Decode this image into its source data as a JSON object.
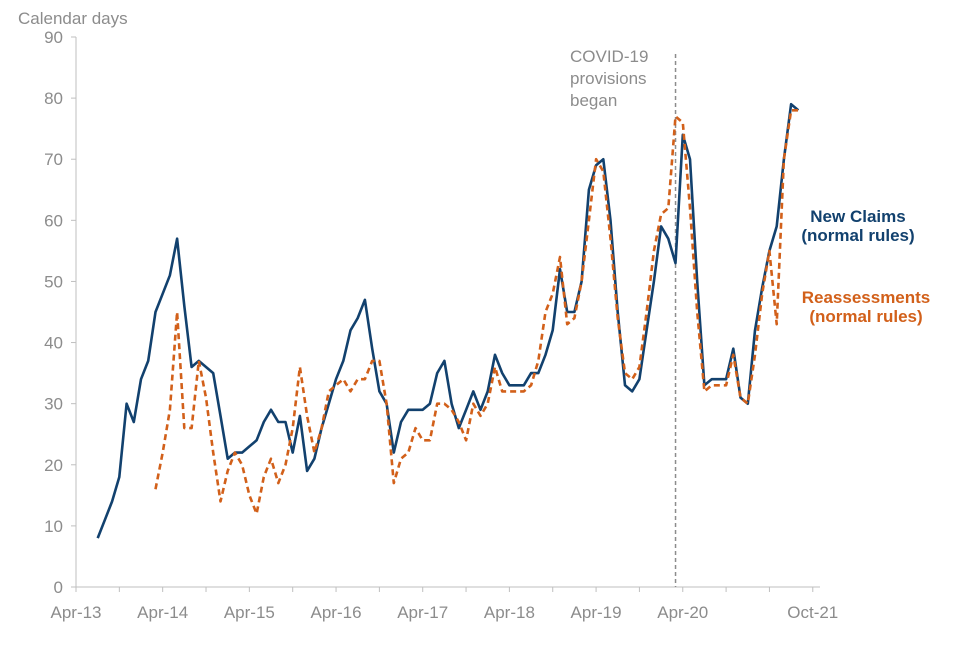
{
  "chart_data": {
    "type": "line",
    "ylabel": "Calendar days",
    "ylim": [
      0,
      90
    ],
    "yticks": [
      0,
      10,
      20,
      30,
      40,
      50,
      60,
      70,
      80,
      90
    ],
    "xlim": [
      "2013-04",
      "2021-11"
    ],
    "xtick_labels": [
      {
        "label": "Apr-13",
        "date": "2013-04"
      },
      {
        "label": "Apr-14",
        "date": "2014-04"
      },
      {
        "label": "Apr-15",
        "date": "2015-04"
      },
      {
        "label": "Apr-16",
        "date": "2016-04"
      },
      {
        "label": "Apr-17",
        "date": "2017-04"
      },
      {
        "label": "Apr-18",
        "date": "2018-04"
      },
      {
        "label": "Apr-19",
        "date": "2019-04"
      },
      {
        "label": "Apr-20",
        "date": "2020-04"
      },
      {
        "label": "Oct-21",
        "date": "2021-10"
      }
    ],
    "grid": false,
    "annotation": {
      "text": [
        "COVID-19",
        "provisions",
        "began"
      ],
      "date": "2020-03"
    },
    "series": [
      {
        "name": "New Claims (normal rules)",
        "label_lines": [
          "New Claims",
          "(normal rules)"
        ],
        "color": "#12416e",
        "style": "solid",
        "points": [
          [
            "2013-07",
            8
          ],
          [
            "2013-08",
            11
          ],
          [
            "2013-09",
            14
          ],
          [
            "2013-10",
            18
          ],
          [
            "2013-11",
            30
          ],
          [
            "2013-12",
            27
          ],
          [
            "2014-01",
            34
          ],
          [
            "2014-02",
            37
          ],
          [
            "2014-03",
            45
          ],
          [
            "2014-04",
            48
          ],
          [
            "2014-05",
            51
          ],
          [
            "2014-06",
            57
          ],
          [
            "2014-07",
            46
          ],
          [
            "2014-08",
            36
          ],
          [
            "2014-09",
            37
          ],
          [
            "2014-10",
            36
          ],
          [
            "2014-11",
            35
          ],
          [
            "2014-12",
            28
          ],
          [
            "2015-01",
            21
          ],
          [
            "2015-02",
            22
          ],
          [
            "2015-03",
            22
          ],
          [
            "2015-04",
            23
          ],
          [
            "2015-05",
            24
          ],
          [
            "2015-06",
            27
          ],
          [
            "2015-07",
            29
          ],
          [
            "2015-08",
            27
          ],
          [
            "2015-09",
            27
          ],
          [
            "2015-10",
            22
          ],
          [
            "2015-11",
            28
          ],
          [
            "2015-12",
            19
          ],
          [
            "2016-01",
            21
          ],
          [
            "2016-02",
            26
          ],
          [
            "2016-03",
            30
          ],
          [
            "2016-04",
            34
          ],
          [
            "2016-05",
            37
          ],
          [
            "2016-06",
            42
          ],
          [
            "2016-07",
            44
          ],
          [
            "2016-08",
            47
          ],
          [
            "2016-09",
            39
          ],
          [
            "2016-10",
            32
          ],
          [
            "2016-11",
            30
          ],
          [
            "2016-12",
            22
          ],
          [
            "2017-01",
            27
          ],
          [
            "2017-02",
            29
          ],
          [
            "2017-03",
            29
          ],
          [
            "2017-04",
            29
          ],
          [
            "2017-05",
            30
          ],
          [
            "2017-06",
            35
          ],
          [
            "2017-07",
            37
          ],
          [
            "2017-08",
            30
          ],
          [
            "2017-09",
            26
          ],
          [
            "2017-10",
            29
          ],
          [
            "2017-11",
            32
          ],
          [
            "2017-12",
            29
          ],
          [
            "2018-01",
            32
          ],
          [
            "2018-02",
            38
          ],
          [
            "2018-03",
            35
          ],
          [
            "2018-04",
            33
          ],
          [
            "2018-05",
            33
          ],
          [
            "2018-06",
            33
          ],
          [
            "2018-07",
            35
          ],
          [
            "2018-08",
            35
          ],
          [
            "2018-09",
            38
          ],
          [
            "2018-10",
            42
          ],
          [
            "2018-11",
            52
          ],
          [
            "2018-12",
            45
          ],
          [
            "2019-01",
            45
          ],
          [
            "2019-02",
            50
          ],
          [
            "2019-03",
            65
          ],
          [
            "2019-04",
            69
          ],
          [
            "2019-05",
            70
          ],
          [
            "2019-06",
            60
          ],
          [
            "2019-07",
            45
          ],
          [
            "2019-08",
            33
          ],
          [
            "2019-09",
            32
          ],
          [
            "2019-10",
            34
          ],
          [
            "2019-11",
            42
          ],
          [
            "2019-12",
            50
          ],
          [
            "2020-01",
            59
          ],
          [
            "2020-02",
            57
          ],
          [
            "2020-03",
            53
          ],
          [
            "2020-04",
            74
          ],
          [
            "2020-05",
            70
          ],
          [
            "2020-06",
            50
          ],
          [
            "2020-07",
            33
          ],
          [
            "2020-08",
            34
          ],
          [
            "2020-09",
            34
          ],
          [
            "2020-10",
            34
          ],
          [
            "2020-11",
            39
          ],
          [
            "2020-12",
            31
          ],
          [
            "2021-01",
            30
          ],
          [
            "2021-02",
            42
          ],
          [
            "2021-03",
            49
          ],
          [
            "2021-04",
            55
          ],
          [
            "2021-05",
            59
          ],
          [
            "2021-06",
            70
          ],
          [
            "2021-07",
            79
          ],
          [
            "2021-08",
            78
          ]
        ]
      },
      {
        "name": "Reassessments (normal rules)",
        "label_lines": [
          "Reassessments",
          "(normal rules)"
        ],
        "color": "#d2601a",
        "style": "dashed",
        "points": [
          [
            "2014-03",
            16
          ],
          [
            "2014-04",
            22
          ],
          [
            "2014-05",
            29
          ],
          [
            "2014-06",
            45
          ],
          [
            "2014-07",
            26
          ],
          [
            "2014-08",
            26
          ],
          [
            "2014-09",
            37
          ],
          [
            "2014-10",
            31
          ],
          [
            "2014-11",
            22
          ],
          [
            "2014-12",
            14
          ],
          [
            "2015-01",
            19
          ],
          [
            "2015-02",
            22
          ],
          [
            "2015-03",
            20
          ],
          [
            "2015-04",
            15
          ],
          [
            "2015-05",
            12
          ],
          [
            "2015-06",
            18
          ],
          [
            "2015-07",
            21
          ],
          [
            "2015-08",
            17
          ],
          [
            "2015-09",
            20
          ],
          [
            "2015-10",
            26
          ],
          [
            "2015-11",
            36
          ],
          [
            "2015-12",
            28
          ],
          [
            "2016-01",
            22
          ],
          [
            "2016-02",
            26
          ],
          [
            "2016-03",
            32
          ],
          [
            "2016-04",
            33
          ],
          [
            "2016-05",
            34
          ],
          [
            "2016-06",
            32
          ],
          [
            "2016-07",
            34
          ],
          [
            "2016-08",
            34
          ],
          [
            "2016-09",
            37
          ],
          [
            "2016-10",
            37
          ],
          [
            "2016-11",
            30
          ],
          [
            "2016-12",
            17
          ],
          [
            "2017-01",
            21
          ],
          [
            "2017-02",
            22
          ],
          [
            "2017-03",
            26
          ],
          [
            "2017-04",
            24
          ],
          [
            "2017-05",
            24
          ],
          [
            "2017-06",
            30
          ],
          [
            "2017-07",
            30
          ],
          [
            "2017-08",
            29
          ],
          [
            "2017-09",
            27
          ],
          [
            "2017-10",
            24
          ],
          [
            "2017-11",
            30
          ],
          [
            "2017-12",
            28
          ],
          [
            "2018-01",
            30
          ],
          [
            "2018-02",
            36
          ],
          [
            "2018-03",
            32
          ],
          [
            "2018-04",
            32
          ],
          [
            "2018-05",
            32
          ],
          [
            "2018-06",
            32
          ],
          [
            "2018-07",
            33
          ],
          [
            "2018-08",
            37
          ],
          [
            "2018-09",
            45
          ],
          [
            "2018-10",
            48
          ],
          [
            "2018-11",
            54
          ],
          [
            "2018-12",
            43
          ],
          [
            "2019-01",
            44
          ],
          [
            "2019-02",
            50
          ],
          [
            "2019-03",
            60
          ],
          [
            "2019-04",
            70
          ],
          [
            "2019-05",
            68
          ],
          [
            "2019-06",
            57
          ],
          [
            "2019-07",
            44
          ],
          [
            "2019-08",
            35
          ],
          [
            "2019-09",
            34
          ],
          [
            "2019-10",
            36
          ],
          [
            "2019-11",
            45
          ],
          [
            "2019-12",
            55
          ],
          [
            "2020-01",
            61
          ],
          [
            "2020-02",
            62
          ],
          [
            "2020-03",
            77
          ],
          [
            "2020-04",
            76
          ],
          [
            "2020-05",
            62
          ],
          [
            "2020-06",
            45
          ],
          [
            "2020-07",
            32
          ],
          [
            "2020-08",
            33
          ],
          [
            "2020-09",
            33
          ],
          [
            "2020-10",
            33
          ],
          [
            "2020-11",
            38
          ],
          [
            "2020-12",
            31
          ],
          [
            "2021-01",
            30
          ],
          [
            "2021-02",
            38
          ],
          [
            "2021-03",
            48
          ],
          [
            "2021-04",
            55
          ],
          [
            "2021-05",
            43
          ],
          [
            "2021-06",
            70
          ],
          [
            "2021-07",
            78
          ],
          [
            "2021-08",
            78
          ]
        ]
      }
    ]
  }
}
